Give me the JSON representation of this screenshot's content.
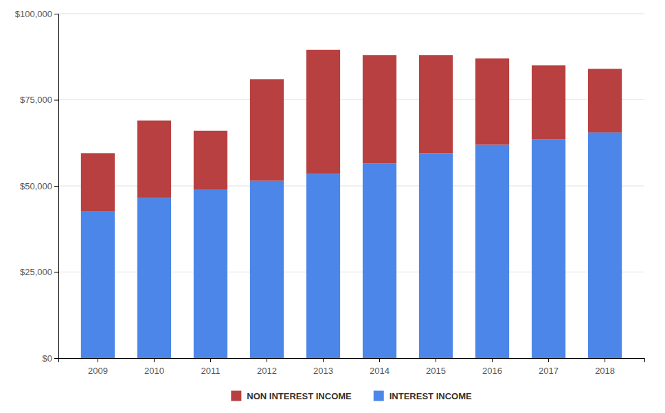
{
  "chart_data": {
    "type": "bar",
    "stacked": true,
    "categories": [
      "2009",
      "2010",
      "2011",
      "2012",
      "2013",
      "2014",
      "2015",
      "2016",
      "2017",
      "2018"
    ],
    "series": [
      {
        "name": "INTEREST INCOME",
        "color": "#4C86E8",
        "values": [
          42500,
          46500,
          49000,
          51500,
          53500,
          56500,
          59500,
          62000,
          63500,
          65500
        ]
      },
      {
        "name": "NON INTEREST INCOME",
        "color": "#B84040",
        "values": [
          17000,
          22500,
          17000,
          29500,
          36000,
          31500,
          28500,
          25000,
          21500,
          18500
        ]
      }
    ],
    "ylim": [
      0,
      100000
    ],
    "yticks": [
      {
        "value": 0,
        "label": "$0"
      },
      {
        "value": 25000,
        "label": "$25,000"
      },
      {
        "value": 50000,
        "label": "$50,000"
      },
      {
        "value": 75000,
        "label": "$75,000"
      },
      {
        "value": 100000,
        "label": "$100,000"
      }
    ],
    "grid": true,
    "legend": "bottom"
  }
}
